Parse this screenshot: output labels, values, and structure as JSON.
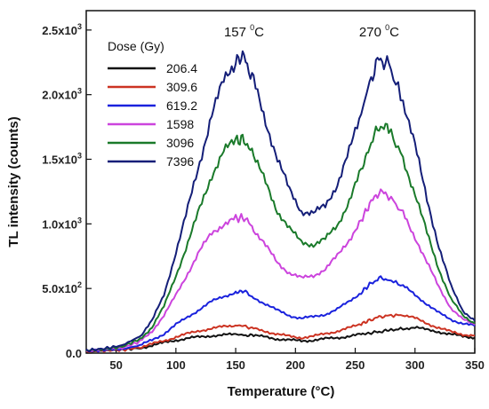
{
  "chart_data": {
    "type": "line",
    "xlabel": "Temperature (°C)",
    "ylabel": "TL intensity (counts)",
    "xlim": [
      25,
      350
    ],
    "ylim": [
      0,
      2650
    ],
    "x_ticks": [
      50,
      100,
      150,
      200,
      250,
      300,
      350
    ],
    "y_ticks": [
      {
        "value": 0,
        "mant": "0.0",
        "exp": ""
      },
      {
        "value": 500,
        "mant": "5.0x10",
        "exp": "2"
      },
      {
        "value": 1000,
        "mant": "1.0x10",
        "exp": "3"
      },
      {
        "value": 1500,
        "mant": "1.5x10",
        "exp": "3"
      },
      {
        "value": 2000,
        "mant": "2.0x10",
        "exp": "3"
      },
      {
        "value": 2500,
        "mant": "2.5x10",
        "exp": "3"
      }
    ],
    "grid": false,
    "legend": {
      "title": "Dose (Gy)",
      "position": "top-left"
    },
    "annotations": [
      {
        "label": "157 ",
        "sup": "0",
        "unit": "C",
        "x": 157,
        "y": 2450
      },
      {
        "label": "270 ",
        "sup": "0",
        "unit": "C",
        "x": 270,
        "y": 2450
      }
    ],
    "x": [
      25,
      40,
      55,
      70,
      80,
      90,
      100,
      110,
      120,
      130,
      140,
      150,
      157,
      165,
      175,
      185,
      195,
      205,
      215,
      225,
      235,
      245,
      255,
      262,
      270,
      278,
      290,
      300,
      310,
      320,
      330,
      340,
      350
    ],
    "series": [
      {
        "name": "206.4",
        "color": "#111111",
        "values": [
          10,
          20,
          25,
          40,
          60,
          80,
          100,
          115,
          125,
          135,
          140,
          145,
          140,
          135,
          125,
          110,
          100,
          95,
          100,
          110,
          120,
          130,
          145,
          155,
          165,
          175,
          190,
          200,
          180,
          165,
          145,
          130,
          120
        ]
      },
      {
        "name": "309.6",
        "color": "#cc3322",
        "values": [
          10,
          20,
          25,
          45,
          70,
          95,
          125,
          150,
          175,
          190,
          205,
          215,
          210,
          190,
          170,
          145,
          130,
          120,
          130,
          150,
          170,
          195,
          225,
          255,
          280,
          290,
          295,
          270,
          230,
          195,
          165,
          145,
          135
        ]
      },
      {
        "name": "619.2",
        "color": "#1a22dd",
        "values": [
          15,
          25,
          30,
          60,
          100,
          150,
          220,
          280,
          340,
          400,
          440,
          470,
          480,
          430,
          380,
          330,
          290,
          270,
          280,
          300,
          340,
          400,
          470,
          530,
          580,
          570,
          520,
          450,
          380,
          310,
          260,
          230,
          210
        ]
      },
      {
        "name": "1598",
        "color": "#cc44dd",
        "values": [
          15,
          30,
          40,
          90,
          170,
          290,
          450,
          620,
          790,
          930,
          1000,
          1040,
          1050,
          960,
          830,
          700,
          620,
          580,
          600,
          650,
          750,
          880,
          1030,
          1150,
          1250,
          1220,
          1080,
          900,
          700,
          510,
          350,
          260,
          220
        ]
      },
      {
        "name": "3096",
        "color": "#1a7a2a",
        "values": [
          20,
          30,
          50,
          110,
          200,
          360,
          600,
          850,
          1120,
          1380,
          1560,
          1640,
          1660,
          1520,
          1320,
          1100,
          960,
          860,
          840,
          880,
          990,
          1180,
          1410,
          1600,
          1760,
          1730,
          1510,
          1230,
          930,
          650,
          420,
          290,
          230
        ]
      },
      {
        "name": "7396",
        "color": "#141e78",
        "values": [
          20,
          35,
          60,
          130,
          250,
          450,
          780,
          1120,
          1480,
          1850,
          2100,
          2260,
          2300,
          2100,
          1800,
          1500,
          1260,
          1100,
          1080,
          1140,
          1310,
          1560,
          1850,
          2100,
          2280,
          2230,
          1950,
          1600,
          1200,
          820,
          520,
          330,
          250
        ]
      }
    ]
  }
}
